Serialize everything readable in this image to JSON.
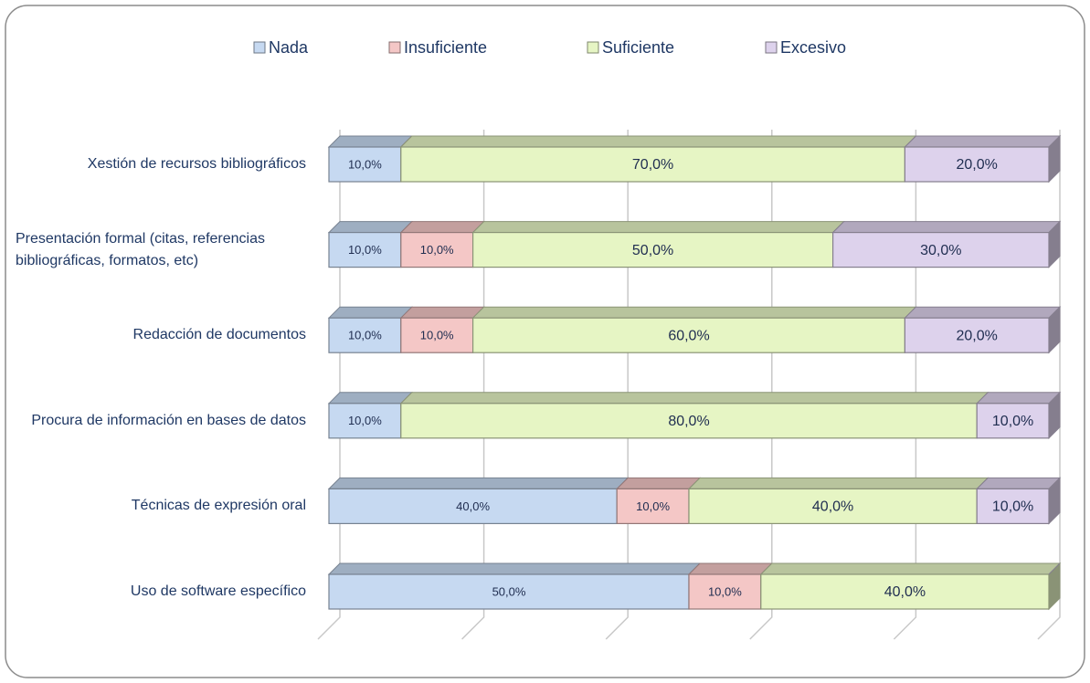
{
  "chart_data": {
    "type": "stacked_barh",
    "categories": [
      "Xestión de recursos bibliográficos",
      "Presentación formal (citas, referencias bibliográficas, formatos, etc)",
      "Redacción de documentos",
      "Procura de información en bases de datos",
      "Técnicas de expresión oral",
      "Uso de software específico"
    ],
    "series": [
      {
        "name": "Nada",
        "color": "#c6d9f1",
        "values": [
          10,
          10,
          10,
          10,
          40,
          50
        ],
        "value_labels": [
          "10,0%",
          "10,0%",
          "10,0%",
          "10,0%",
          "40,0%",
          "50,0%"
        ]
      },
      {
        "name": "Insuficiente",
        "color": "#f4c7c6",
        "values": [
          0,
          10,
          10,
          0,
          10,
          10
        ],
        "value_labels": [
          null,
          "10,0%",
          "10,0%",
          null,
          "10,0%",
          "10,0%"
        ]
      },
      {
        "name": "Suficiente",
        "color": "#e6f5c4",
        "values": [
          70,
          50,
          60,
          80,
          40,
          40
        ],
        "value_labels": [
          "70,0%",
          "50,0%",
          "60,0%",
          "80,0%",
          "40,0%",
          "40,0%"
        ]
      },
      {
        "name": "Excesivo",
        "color": "#ddd2ec",
        "values": [
          20,
          30,
          20,
          10,
          10,
          0
        ],
        "value_labels": [
          "20,0%",
          "30,0%",
          "20,0%",
          "10,0%",
          "10,0%",
          null
        ]
      }
    ],
    "xlim": [
      0,
      100
    ],
    "xticks": [
      0,
      20,
      40,
      60,
      80,
      100
    ],
    "grid": true,
    "legend": "top"
  }
}
